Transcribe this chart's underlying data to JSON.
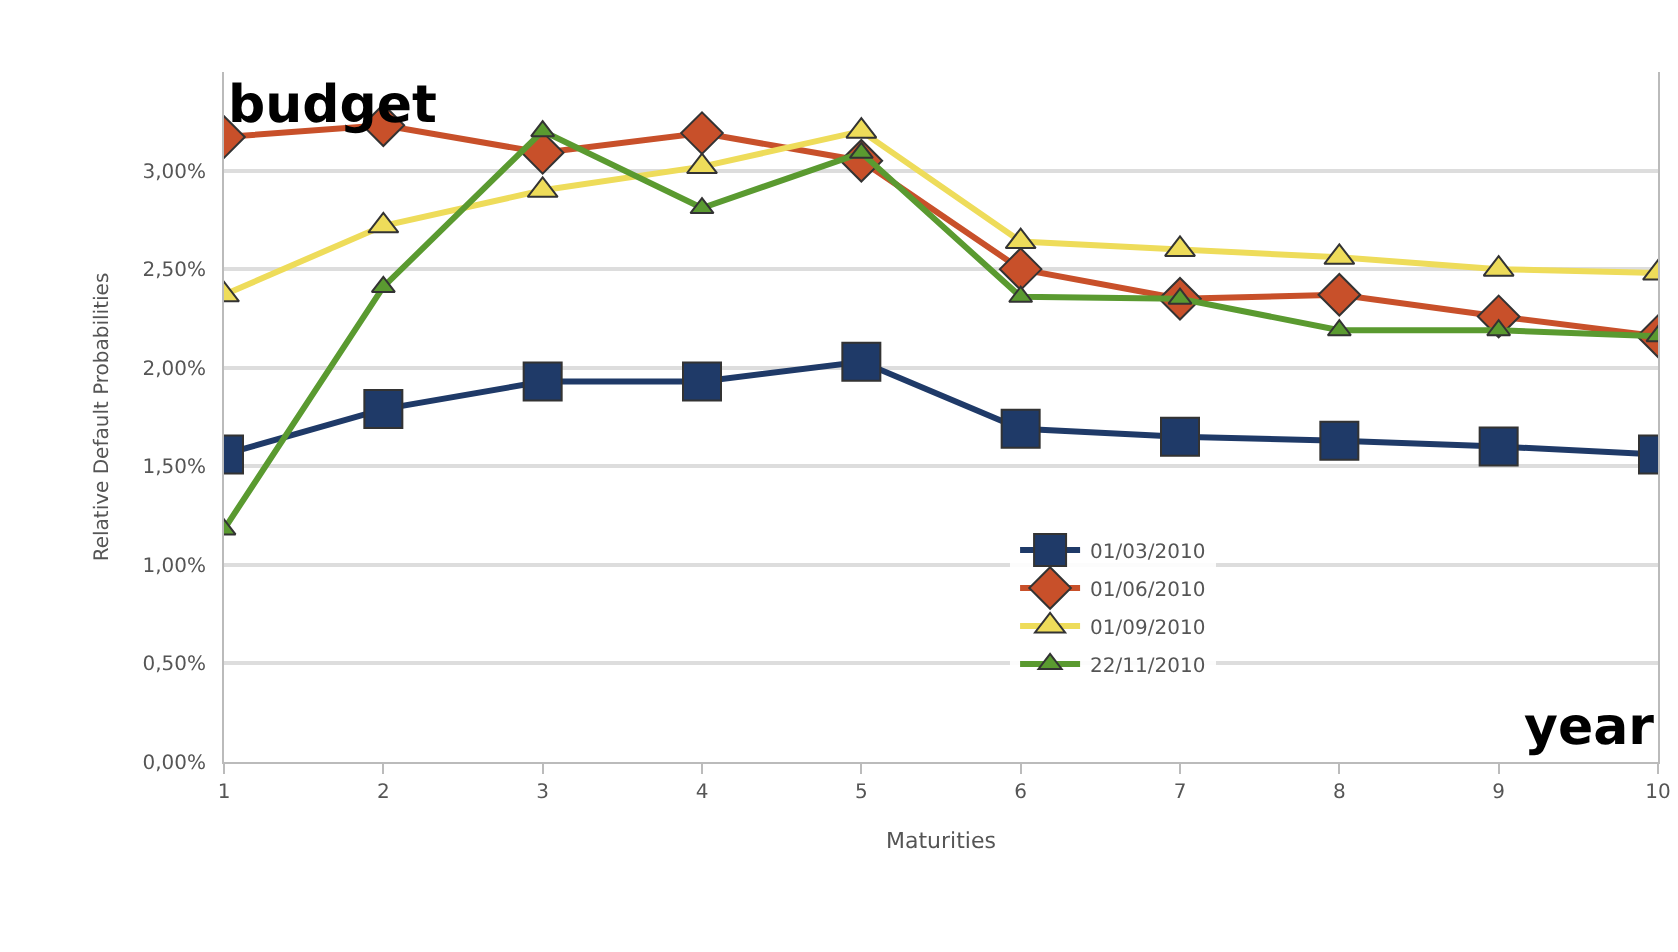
{
  "chart_data": {
    "type": "line",
    "xlabel": "Maturities",
    "ylabel": "Relative Default Probabilities",
    "x": [
      1,
      2,
      3,
      4,
      5,
      6,
      7,
      8,
      9,
      10
    ],
    "xlim": [
      1,
      10
    ],
    "xticks": [
      1,
      2,
      3,
      4,
      5,
      6,
      7,
      8,
      9,
      10
    ],
    "ylim": [
      0,
      3.5
    ],
    "yticks": [
      {
        "value": 0,
        "label": "0,00%"
      },
      {
        "value": 0.5,
        "label": "0,50%"
      },
      {
        "value": 1,
        "label": "1,00%"
      },
      {
        "value": 1.5,
        "label": "1,50%"
      },
      {
        "value": 2,
        "label": "2,00%"
      },
      {
        "value": 2.5,
        "label": "2,50%"
      },
      {
        "value": 3,
        "label": "3,00%"
      }
    ],
    "grid": "y",
    "legend": "bottom",
    "annotations": [
      "budget",
      "year"
    ],
    "series": [
      {
        "name": "01/03/2010",
        "color": "#1f3a68",
        "marker": "square",
        "values": [
          1.56,
          1.79,
          1.93,
          1.93,
          2.03,
          1.69,
          1.65,
          1.63,
          1.6,
          1.56
        ]
      },
      {
        "name": "01/06/2010",
        "color": "#c8502a",
        "marker": "diamond",
        "values": [
          3.17,
          3.23,
          3.09,
          3.19,
          3.05,
          2.5,
          2.35,
          2.37,
          2.26,
          2.16
        ]
      },
      {
        "name": "01/09/2010",
        "color": "#eedc5a",
        "marker": "triangle",
        "values": [
          2.37,
          2.72,
          2.9,
          3.02,
          3.2,
          2.64,
          2.6,
          2.56,
          2.5,
          2.48
        ]
      },
      {
        "name": "22/11/2010",
        "color": "#5a9a30",
        "marker": "triangle",
        "values": [
          1.18,
          2.41,
          3.2,
          2.81,
          3.09,
          2.36,
          2.35,
          2.19,
          2.19,
          2.16
        ]
      }
    ]
  }
}
